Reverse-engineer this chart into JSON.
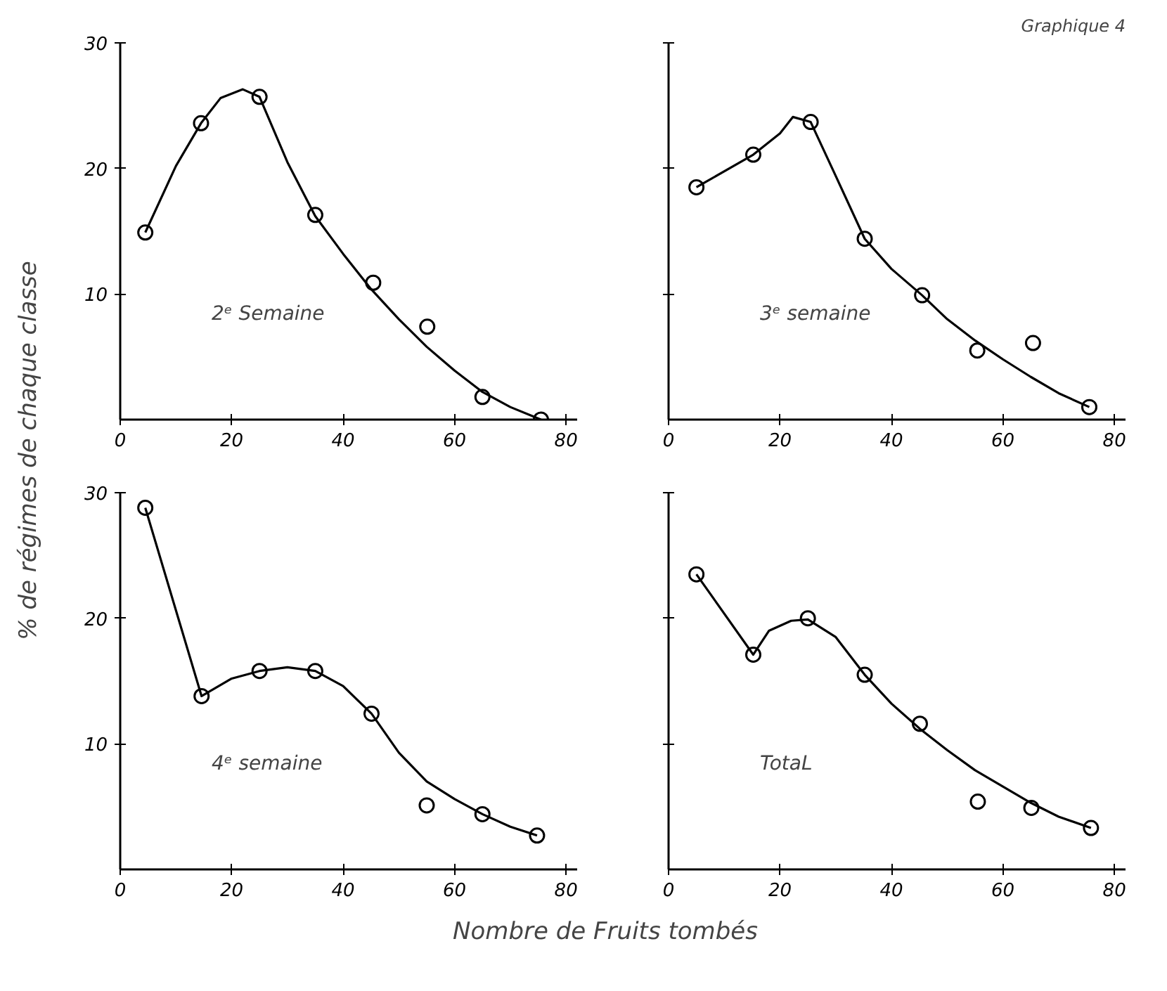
{
  "chart_data": [
    {
      "type": "scatter",
      "ylabel": "% de régimes de chaque classe",
      "annotations": [
        "2ᵉ Semaine"
      ],
      "xlim": [
        0,
        82
      ],
      "ylim": [
        0,
        30
      ],
      "xticks": [
        0,
        20,
        40,
        60,
        80
      ],
      "yticks": [
        10,
        20,
        30
      ],
      "grid": false,
      "series": [
        {
          "marker": "circle",
          "color": "#000000",
          "x": [
            4.5,
            14.5,
            25,
            35,
            45.4,
            55.1,
            65,
            75.5
          ],
          "values": [
            14.9,
            23.6,
            25.7,
            16.3,
            10.9,
            7.4,
            1.8,
            0
          ]
        },
        {
          "type": "line",
          "line_style": "solid",
          "color": "#000000",
          "x": [
            4.5,
            10,
            14.5,
            18,
            22,
            25,
            30,
            35,
            40,
            45,
            50,
            55,
            60,
            65,
            70,
            75.5
          ],
          "values": [
            14.9,
            20.2,
            23.6,
            25.6,
            26.3,
            25.7,
            20.5,
            16.2,
            13.2,
            10.4,
            8,
            5.8,
            3.9,
            2.2,
            1,
            0
          ]
        }
      ]
    },
    {
      "type": "scatter",
      "title": "Graphique 4",
      "annotations": [
        "3ᵉ semaine"
      ],
      "tick_labels": "x",
      "xlim": [
        0,
        82
      ],
      "ylim": [
        0,
        30
      ],
      "xticks": [
        0,
        20,
        40,
        60,
        80
      ],
      "yticks": [
        {
          "value": 10,
          "label": null
        },
        {
          "value": 20,
          "label": null
        },
        {
          "value": 30,
          "label": null
        }
      ],
      "grid": false,
      "series": [
        {
          "marker": "circle",
          "color": "#000000",
          "x": [
            5,
            15.2,
            25.5,
            35.2,
            45.5,
            55.4,
            65.4,
            75.5
          ],
          "values": [
            18.5,
            21.1,
            23.7,
            14.4,
            9.9,
            5.5,
            6.1,
            1.0
          ]
        },
        {
          "type": "line",
          "line_style": "solid",
          "color": "#000000",
          "x": [
            5,
            15.2,
            20,
            22.3,
            25.5,
            30,
            35.2,
            40,
            45.5,
            50,
            55,
            60,
            65,
            70,
            75.5
          ],
          "values": [
            18.5,
            21.1,
            22.8,
            24.1,
            23.7,
            19.4,
            14.4,
            12,
            9.9,
            8,
            6.3,
            4.8,
            3.4,
            2.1,
            1.0
          ]
        }
      ]
    },
    {
      "type": "scatter",
      "xlabel": "Nombre de Fruits tombés",
      "annotations": [
        "4ᵉ semaine"
      ],
      "xlim": [
        0,
        82
      ],
      "ylim": [
        0,
        30
      ],
      "xticks": [
        0,
        20,
        40,
        60,
        80
      ],
      "yticks": [
        10,
        20,
        30
      ],
      "grid": false,
      "series": [
        {
          "marker": "circle",
          "color": "#000000",
          "x": [
            4.5,
            14.6,
            25,
            35,
            45.1,
            55,
            65,
            74.8
          ],
          "values": [
            28.8,
            13.8,
            15.8,
            15.8,
            12.4,
            5.1,
            4.4,
            2.7
          ]
        },
        {
          "type": "line",
          "line_style": "solid",
          "color": "#000000",
          "x": [
            4.5,
            14.6,
            20,
            25,
            30,
            35,
            40,
            45.1,
            50,
            55,
            60,
            65,
            70,
            74.8
          ],
          "values": [
            28.8,
            13.8,
            15.2,
            15.8,
            16.1,
            15.8,
            14.6,
            12.4,
            9.3,
            7,
            5.6,
            4.4,
            3.4,
            2.7
          ]
        }
      ]
    },
    {
      "type": "scatter",
      "annotations": [
        "TotaL"
      ],
      "tick_labels": "x",
      "xlim": [
        0,
        82
      ],
      "ylim": [
        0,
        30
      ],
      "xticks": [
        0,
        20,
        40,
        60,
        80
      ],
      "yticks": [
        {
          "value": 10,
          "label": null
        },
        {
          "value": 20,
          "label": null
        },
        {
          "value": 30,
          "label": null
        }
      ],
      "grid": false,
      "series": [
        {
          "marker": "circle",
          "color": "#000000",
          "x": [
            5,
            15.2,
            25,
            35.2,
            45.1,
            55.5,
            65.1,
            75.8
          ],
          "values": [
            23.5,
            17.1,
            20.0,
            15.5,
            11.6,
            5.4,
            4.9,
            3.3
          ]
        },
        {
          "type": "line",
          "line_style": "solid",
          "color": "#000000",
          "x": [
            5,
            15.2,
            18,
            22,
            25,
            30,
            35.2,
            40,
            45.1,
            50,
            55,
            60,
            65,
            70,
            75.8
          ],
          "values": [
            23.5,
            17.1,
            19,
            19.8,
            19.9,
            18.5,
            15.5,
            13.2,
            11.2,
            9.5,
            7.9,
            6.6,
            5.3,
            4.2,
            3.3
          ]
        }
      ]
    }
  ]
}
